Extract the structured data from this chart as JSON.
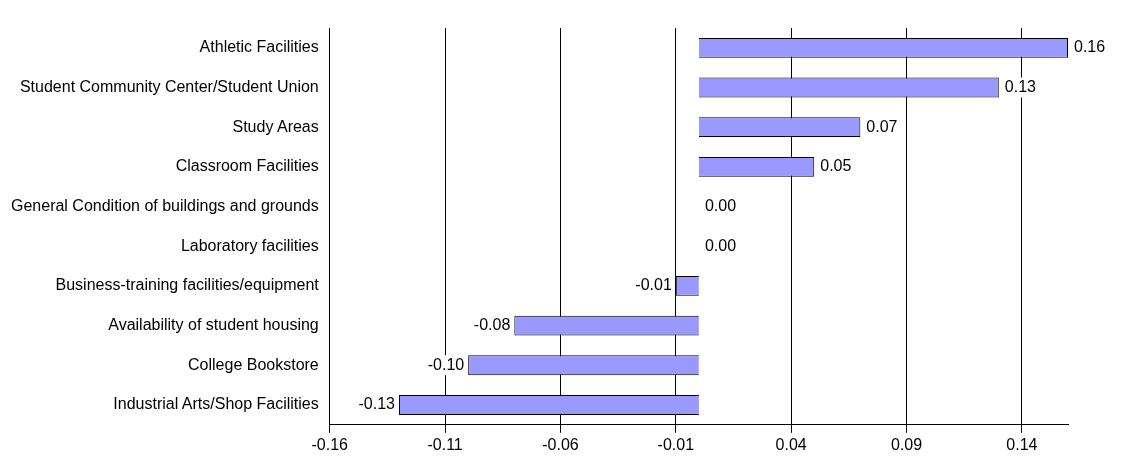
{
  "chart_data": {
    "type": "bar",
    "orientation": "horizontal",
    "categories": [
      "Athletic Facilities",
      "Student Community Center/Student Union",
      "Study Areas",
      "Classroom Facilities",
      "General Condition of buildings and grounds",
      "Laboratory facilities",
      "Business-training facilities/equipment",
      "Availability of student housing",
      "College Bookstore",
      "Industrial Arts/Shop Facilities"
    ],
    "values": [
      0.16,
      0.13,
      0.07,
      0.05,
      0,
      0,
      -0.01,
      -0.08,
      -0.1,
      -0.13
    ],
    "value_labels": [
      "0.16",
      "0.13",
      "0.07",
      "0.05",
      "0.00",
      "0.00",
      "-0.01",
      "-0.08",
      "-0.10",
      "-0.13"
    ],
    "color": "#9999ff",
    "xlim": [
      -0.16,
      0.16
    ],
    "xticks": [
      -0.16,
      -0.11,
      -0.06,
      -0.01,
      0.04,
      0.09,
      0.14
    ],
    "grid": "x",
    "legend": false
  }
}
